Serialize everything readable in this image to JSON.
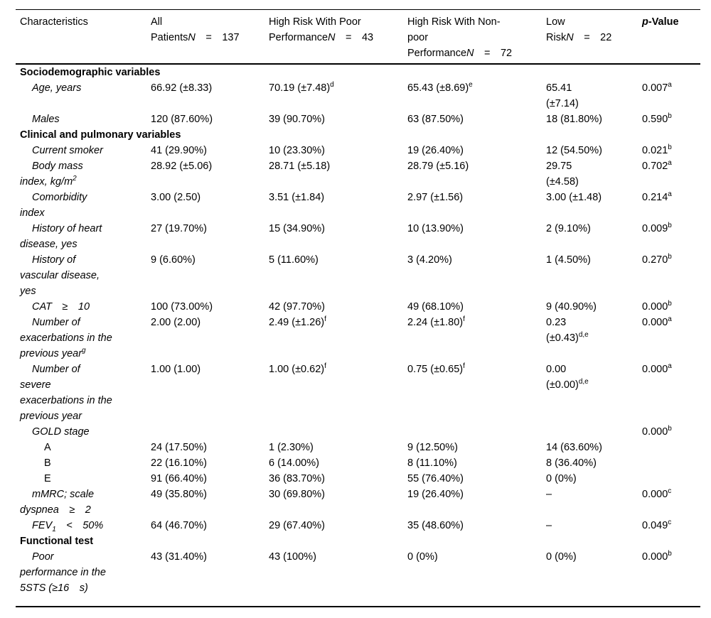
{
  "page": {
    "background": "#ffffff",
    "text_color": "#000000",
    "rule_color": "#000000"
  },
  "table": {
    "columns": [
      {
        "key": "characteristics",
        "label_html": "Characteristics"
      },
      {
        "key": "all_patients",
        "label_html": "All<br>Patients<i>N</i> = 137"
      },
      {
        "key": "high_risk_poor_performance",
        "label_html": "High Risk With Poor<br>Performance<i>N</i> = 43"
      },
      {
        "key": "high_risk_nonpoor_performance",
        "label_html": "High Risk With Non-<br>poor<br>Performance<i>N</i> = 72"
      },
      {
        "key": "low_risk",
        "label_html": "Low<br>Risk<i>N</i> = 22"
      },
      {
        "key": "p_value",
        "label_html": "<i>p</i>-Value"
      }
    ],
    "rows": [
      {
        "type": "section",
        "label_html": "Sociodemographic variables"
      },
      {
        "type": "item",
        "label_html": "Age, years",
        "cells": [
          "66.92 (±8.33)",
          "70.19 (±7.48)<sup>d</sup>",
          "65.43 (±8.69)<sup>e</sup>",
          "65.41<br>(±7.14)",
          "0.007<sup>a</sup>"
        ]
      },
      {
        "type": "item",
        "label_html": "Males",
        "cells": [
          "120 (87.60%)",
          "39 (90.70%)",
          "63 (87.50%)",
          "18 (81.80%)",
          "0.590<sup>b</sup>"
        ]
      },
      {
        "type": "section",
        "label_html": "Clinical and pulmonary variables"
      },
      {
        "type": "item",
        "label_html": "Current smoker",
        "cells": [
          "41 (29.90%)",
          "10 (23.30%)",
          "19 (26.40%)",
          "12 (54.50%)",
          "0.021<sup>b</sup>"
        ]
      },
      {
        "type": "item",
        "label_html": "Body mass<br>index, kg/m<sup>2</sup>",
        "cells": [
          "28.92 (±5.06)",
          "28.71 (±5.18)",
          "28.79 (±5.16)",
          "29.75<br>(±4.58)",
          "0.702<sup>a</sup>"
        ]
      },
      {
        "type": "item",
        "label_html": "Comorbidity<br>index",
        "cells": [
          "3.00 (2.50)",
          "3.51 (±1.84)",
          "2.97 (±1.56)",
          "3.00 (±1.48)",
          "0.214<sup>a</sup>"
        ]
      },
      {
        "type": "item",
        "label_html": "History of heart<br>disease, yes",
        "cells": [
          "27 (19.70%)",
          "15 (34.90%)",
          "10 (13.90%)",
          "2 (9.10%)",
          "0.009<sup>b</sup>"
        ]
      },
      {
        "type": "item",
        "label_html": "History of<br>vascular disease,<br>yes",
        "cells": [
          "9 (6.60%)",
          "5 (11.60%)",
          "3 (4.20%)",
          "1 (4.50%)",
          "0.270<sup>b</sup>"
        ]
      },
      {
        "type": "item",
        "label_html": "CAT ≥ 10",
        "cells": [
          "100 (73.00%)",
          "42 (97.70%)",
          "49 (68.10%)",
          "9 (40.90%)",
          "0.000<sup>b</sup>"
        ]
      },
      {
        "type": "item",
        "label_html": "Number of<br>exacerbations in the<br>previous year<sup>g</sup>",
        "cells": [
          "2.00 (2.00)",
          "2.49 (±1.26)<sup>f</sup>",
          "2.24 (±1.80)<sup>f</sup>",
          "0.23<br>(±0.43)<sup>d,e</sup>",
          "0.000<sup>a</sup>"
        ]
      },
      {
        "type": "item",
        "label_html": "Number of<br>severe<br>exacerbations in the<br>previous year",
        "cells": [
          "1.00 (1.00)",
          "1.00 (±0.62)<sup>f</sup>",
          "0.75 (±0.65)<sup>f</sup>",
          "0.00<br>(±0.00)<sup>d,e</sup>",
          "0.000<sup>a</sup>"
        ]
      },
      {
        "type": "item",
        "label_html": "GOLD stage",
        "cells": [
          "",
          "",
          "",
          "",
          "0.000<sup>b</sup>"
        ]
      },
      {
        "type": "subitem",
        "label_html": "A",
        "cells": [
          "24 (17.50%)",
          "1 (2.30%)",
          "9 (12.50%)",
          "14 (63.60%)",
          ""
        ]
      },
      {
        "type": "subitem",
        "label_html": "B",
        "cells": [
          "22 (16.10%)",
          "6 (14.00%)",
          "8 (11.10%)",
          "8 (36.40%)",
          ""
        ]
      },
      {
        "type": "subitem",
        "label_html": "E",
        "cells": [
          "91 (66.40%)",
          "36 (83.70%)",
          "55 (76.40%)",
          "0 (0%)",
          ""
        ]
      },
      {
        "type": "item",
        "label_html": "mMRC; scale<br>dyspnea ≥ 2",
        "cells": [
          "49 (35.80%)",
          "30 (69.80%)",
          "19 (26.40%)",
          "–",
          "0.000<sup>c</sup>"
        ]
      },
      {
        "type": "item",
        "label_html": "FEV<sub>1</sub> &lt; 50%",
        "cells": [
          "64 (46.70%)",
          "29 (67.40%)",
          "35 (48.60%)",
          "–",
          "0.049<sup>c</sup>"
        ]
      },
      {
        "type": "section",
        "label_html": "Functional test"
      },
      {
        "type": "item",
        "label_html": "Poor<br>performance in the<br>5STS (≥16 s)",
        "cells": [
          "43 (31.40%)",
          "43 (100%)",
          "0 (0%)",
          "0 (0%)",
          "0.000<sup>b</sup>"
        ]
      }
    ]
  }
}
